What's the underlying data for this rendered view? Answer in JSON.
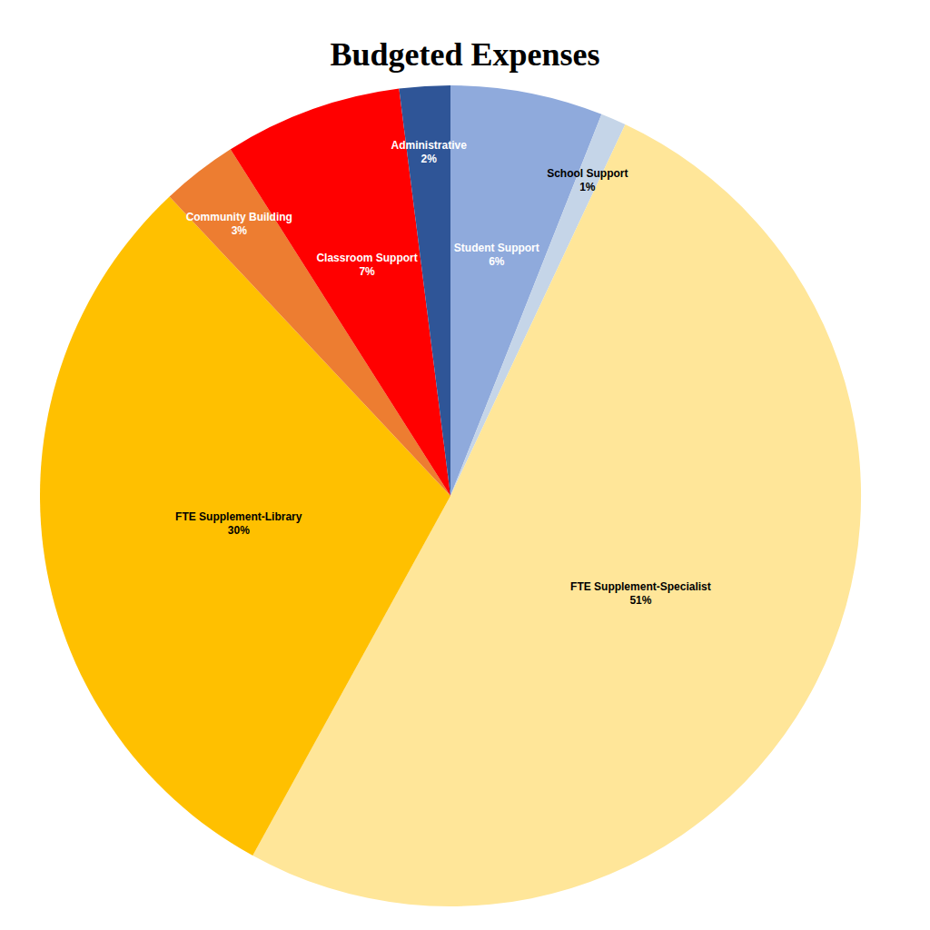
{
  "chart_data": {
    "type": "pie",
    "title": "Budgeted Expenses",
    "categories": [
      "Student Support",
      "School Support",
      "FTE Supplement-Specialist",
      "FTE Supplement-Library",
      "Community Building",
      "Classroom Support",
      "Administrative"
    ],
    "values": [
      6,
      1,
      51,
      30,
      3,
      7,
      2
    ],
    "value_labels": [
      "6%",
      "1%",
      "51%",
      "30%",
      "3%",
      "7%",
      "2%"
    ],
    "colors": [
      "#8faadc",
      "#c5d5e8",
      "#ffe699",
      "#ffc000",
      "#ed7d31",
      "#ff0000",
      "#2f5597"
    ],
    "data_labels": true
  }
}
